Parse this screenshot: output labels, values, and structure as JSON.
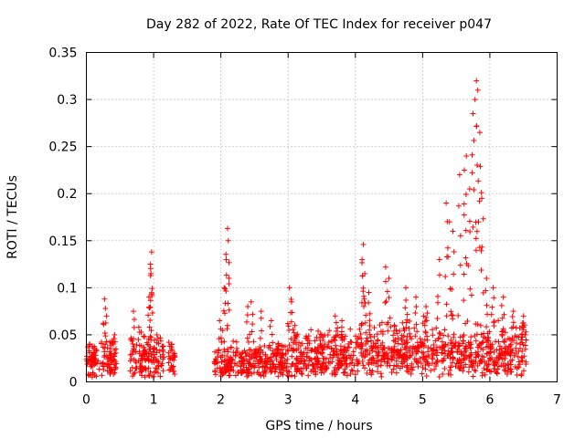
{
  "chart_data": {
    "type": "scatter",
    "title": "Day 282 of 2022, Rate Of TEC Index for receiver p047",
    "xlabel": "GPS time / hours",
    "ylabel": "ROTI / TECUs",
    "xlim": [
      0,
      7
    ],
    "ylim": [
      0,
      0.35
    ],
    "xticks": [
      "0",
      "1",
      "2",
      "3",
      "4",
      "5",
      "6",
      "7"
    ],
    "yticks": [
      "0",
      "0.05",
      "0.1",
      "0.15",
      "0.2",
      "0.25",
      "0.3",
      "0.35"
    ],
    "grid": true,
    "marker": "+",
    "marker_color": "#ff0000",
    "series": [
      {
        "name": "ROTI",
        "segments": [
          {
            "start": 0.0,
            "end": 0.45,
            "base": 0.02,
            "spread": 0.025,
            "peaks": [
              [
                0.27,
                0.088
              ],
              [
                0.3,
                0.07
              ],
              [
                0.05,
                0.04
              ],
              [
                0.42,
                0.05
              ]
            ]
          },
          {
            "start": 0.65,
            "end": 1.15,
            "base": 0.025,
            "spread": 0.03,
            "peaks": [
              [
                0.97,
                0.138
              ],
              [
                0.95,
                0.125
              ],
              [
                0.96,
                0.115
              ],
              [
                0.93,
                0.09
              ],
              [
                0.7,
                0.075
              ],
              [
                1.05,
                0.05
              ]
            ]
          },
          {
            "start": 1.22,
            "end": 1.32,
            "base": 0.02,
            "spread": 0.025,
            "peaks": [
              [
                1.27,
                0.04
              ]
            ]
          },
          {
            "start": 1.9,
            "end": 2.95,
            "base": 0.015,
            "spread": 0.025,
            "peaks": [
              [
                2.1,
                0.163
              ],
              [
                2.11,
                0.15
              ],
              [
                2.08,
                0.13
              ],
              [
                2.05,
                0.1
              ],
              [
                1.98,
                0.065
              ],
              [
                2.45,
                0.085
              ],
              [
                2.4,
                0.08
              ],
              [
                2.6,
                0.075
              ],
              [
                2.75,
                0.065
              ],
              [
                2.85,
                0.04
              ]
            ]
          },
          {
            "start": 2.95,
            "end": 4.0,
            "base": 0.02,
            "spread": 0.035,
            "peaks": [
              [
                3.02,
                0.1
              ],
              [
                3.05,
                0.085
              ],
              [
                3.1,
                0.06
              ],
              [
                3.7,
                0.07
              ],
              [
                3.8,
                0.065
              ],
              [
                3.5,
                0.05
              ]
            ]
          },
          {
            "start": 4.0,
            "end": 5.2,
            "base": 0.03,
            "spread": 0.04,
            "peaks": [
              [
                4.12,
                0.146
              ],
              [
                4.1,
                0.13
              ],
              [
                4.14,
                0.115
              ],
              [
                4.2,
                0.095
              ],
              [
                4.45,
                0.122
              ],
              [
                4.5,
                0.11
              ],
              [
                4.75,
                0.1
              ],
              [
                4.9,
                0.09
              ],
              [
                5.05,
                0.08
              ]
            ]
          },
          {
            "start": 5.2,
            "end": 6.55,
            "base": 0.03,
            "spread": 0.04,
            "peaks": [
              [
                5.8,
                0.32
              ],
              [
                5.82,
                0.31
              ],
              [
                5.78,
                0.3
              ],
              [
                5.75,
                0.285
              ],
              [
                5.85,
                0.265
              ],
              [
                5.65,
                0.24
              ],
              [
                5.62,
                0.225
              ],
              [
                5.55,
                0.22
              ],
              [
                5.7,
                0.205
              ],
              [
                5.88,
                0.195
              ],
              [
                5.35,
                0.19
              ],
              [
                5.4,
                0.17
              ],
              [
                5.45,
                0.16
              ],
              [
                5.25,
                0.13
              ],
              [
                5.95,
                0.11
              ],
              [
                6.05,
                0.1
              ],
              [
                6.2,
                0.09
              ],
              [
                6.35,
                0.075
              ],
              [
                6.5,
                0.07
              ]
            ]
          }
        ]
      }
    ]
  }
}
